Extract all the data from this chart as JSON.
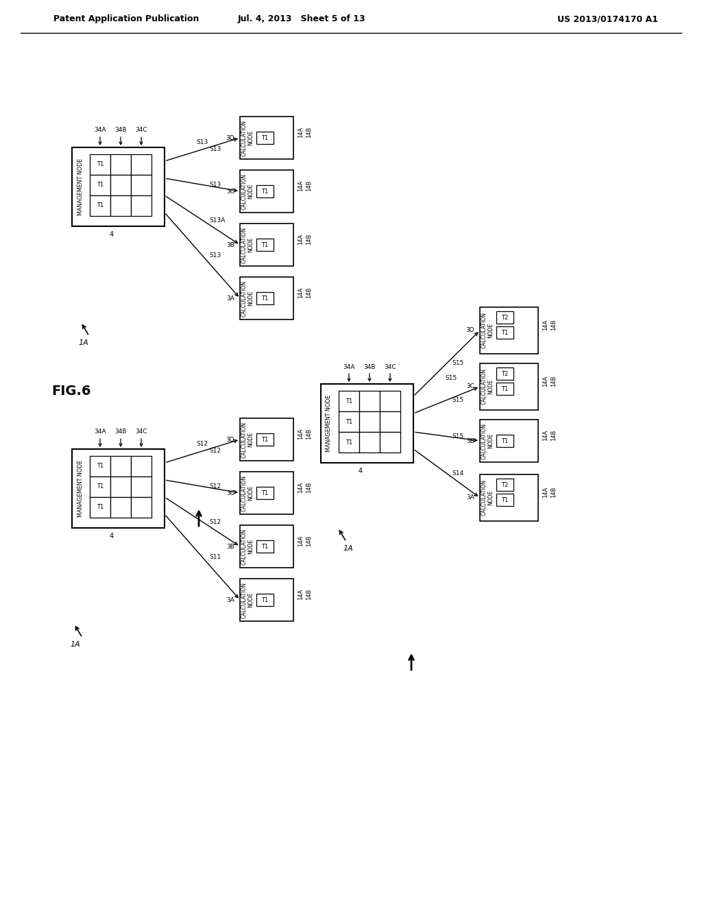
{
  "bg_color": "#ffffff",
  "header_left": "Patent Application Publication",
  "header_mid": "Jul. 4, 2013   Sheet 5 of 13",
  "header_right": "US 2013/0174170 A1",
  "fig_label": "FIG.6"
}
